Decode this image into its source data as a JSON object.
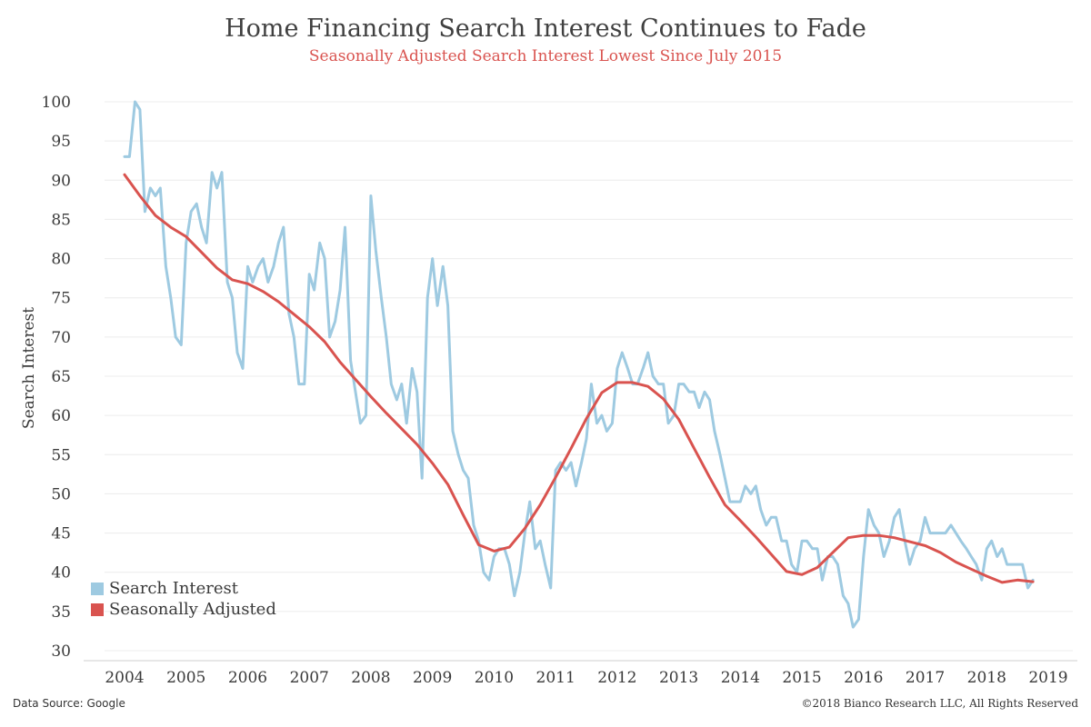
{
  "header": {
    "title": "Home Financing Search Interest Continues to Fade",
    "subtitle": "Seasonally Adjusted Search Interest Lowest Since July 2015"
  },
  "colors": {
    "search_interest": "#9ecae1",
    "seasonally_adjusted": "#d9534f",
    "subtitle": "#d9534f",
    "grid": "#ececec"
  },
  "footer": {
    "source": "Data Source: Google",
    "copyright": "©2018 Bianco Research LLC, All Rights Reserved"
  },
  "chart_data": {
    "type": "line",
    "title": "Home Financing Search Interest Continues to Fade",
    "subtitle": "Seasonally Adjusted Search Interest Lowest Since July 2015",
    "xlabel": "",
    "ylabel": "Search Interest",
    "xlim": [
      2003.3,
      2019.35
    ],
    "ylim": [
      30,
      100
    ],
    "yticks": [
      30,
      35,
      40,
      45,
      50,
      55,
      60,
      65,
      70,
      75,
      80,
      85,
      90,
      95,
      100
    ],
    "xticks": [
      2004,
      2005,
      2006,
      2007,
      2008,
      2009,
      2010,
      2011,
      2012,
      2013,
      2014,
      2015,
      2016,
      2017,
      2018,
      2019
    ],
    "grid": true,
    "legend_position": "bottom-left",
    "series": [
      {
        "name": "Search Interest",
        "color": "#9ecae1",
        "x": [
          2004.0,
          2004.08,
          2004.17,
          2004.25,
          2004.33,
          2004.42,
          2004.5,
          2004.58,
          2004.67,
          2004.75,
          2004.83,
          2004.92,
          2005.0,
          2005.08,
          2005.17,
          2005.25,
          2005.33,
          2005.42,
          2005.5,
          2005.58,
          2005.67,
          2005.75,
          2005.83,
          2005.92,
          2006.0,
          2006.08,
          2006.17,
          2006.25,
          2006.33,
          2006.42,
          2006.5,
          2006.58,
          2006.67,
          2006.75,
          2006.83,
          2006.92,
          2007.0,
          2007.08,
          2007.17,
          2007.25,
          2007.33,
          2007.42,
          2007.5,
          2007.58,
          2007.67,
          2007.75,
          2007.83,
          2007.92,
          2008.0,
          2008.08,
          2008.17,
          2008.25,
          2008.33,
          2008.42,
          2008.5,
          2008.58,
          2008.67,
          2008.75,
          2008.83,
          2008.92,
          2009.0,
          2009.08,
          2009.17,
          2009.25,
          2009.33,
          2009.42,
          2009.5,
          2009.58,
          2009.67,
          2009.75,
          2009.83,
          2009.92,
          2010.0,
          2010.08,
          2010.17,
          2010.25,
          2010.33,
          2010.42,
          2010.5,
          2010.58,
          2010.67,
          2010.75,
          2010.83,
          2010.92,
          2011.0,
          2011.08,
          2011.17,
          2011.25,
          2011.33,
          2011.42,
          2011.5,
          2011.58,
          2011.67,
          2011.75,
          2011.83,
          2011.92,
          2012.0,
          2012.08,
          2012.17,
          2012.25,
          2012.33,
          2012.42,
          2012.5,
          2012.58,
          2012.67,
          2012.75,
          2012.83,
          2012.92,
          2013.0,
          2013.08,
          2013.17,
          2013.25,
          2013.33,
          2013.42,
          2013.5,
          2013.58,
          2013.67,
          2013.75,
          2013.83,
          2013.92,
          2014.0,
          2014.08,
          2014.17,
          2014.25,
          2014.33,
          2014.42,
          2014.5,
          2014.58,
          2014.67,
          2014.75,
          2014.83,
          2014.92,
          2015.0,
          2015.08,
          2015.17,
          2015.25,
          2015.33,
          2015.42,
          2015.5,
          2015.58,
          2015.67,
          2015.75,
          2015.83,
          2015.92,
          2016.0,
          2016.08,
          2016.17,
          2016.25,
          2016.33,
          2016.42,
          2016.5,
          2016.58,
          2016.67,
          2016.75,
          2016.83,
          2016.92,
          2017.0,
          2017.08,
          2017.17,
          2017.25,
          2017.33,
          2017.42,
          2017.5,
          2017.58,
          2017.67,
          2017.75,
          2017.83,
          2017.92,
          2018.0,
          2018.08,
          2018.17,
          2018.25,
          2018.33,
          2018.42,
          2018.5,
          2018.58,
          2018.67,
          2018.75
        ],
        "y": [
          93,
          93,
          100,
          99,
          86,
          89,
          88,
          89,
          79,
          75,
          70,
          69,
          82,
          86,
          87,
          84,
          82,
          91,
          89,
          91,
          77,
          75,
          68,
          66,
          79,
          77,
          79,
          80,
          77,
          79,
          82,
          84,
          73,
          70,
          64,
          64,
          78,
          76,
          82,
          80,
          70,
          72,
          76,
          84,
          67,
          63,
          59,
          60,
          88,
          81,
          75,
          70,
          64,
          62,
          64,
          59,
          66,
          63,
          52,
          75,
          80,
          74,
          79,
          74,
          58,
          55,
          53,
          52,
          46,
          44,
          40,
          39,
          42,
          43,
          43,
          41,
          37,
          40,
          45,
          49,
          43,
          44,
          41,
          38,
          53,
          54,
          53,
          54,
          51,
          54,
          57,
          64,
          59,
          60,
          58,
          59,
          66,
          68,
          66,
          64,
          64,
          66,
          68,
          65,
          64,
          64,
          59,
          60,
          64,
          64,
          63,
          63,
          61,
          63,
          62,
          58,
          55,
          52,
          49,
          49,
          49,
          51,
          50,
          51,
          48,
          46,
          47,
          47,
          44,
          44,
          41,
          40,
          44,
          44,
          43,
          43,
          39,
          42,
          42,
          41,
          37,
          36,
          33,
          34,
          42,
          48,
          46,
          45,
          42,
          44,
          47,
          48,
          44,
          41,
          43,
          44,
          47,
          45,
          45,
          45,
          45,
          46,
          45,
          44,
          43,
          42,
          41,
          39,
          43,
          44,
          42,
          43,
          41,
          41,
          41,
          41,
          38,
          39
        ]
      },
      {
        "name": "Seasonally Adjusted",
        "color": "#d9534f",
        "x": [
          2004.0,
          2004.25,
          2004.5,
          2004.75,
          2005.0,
          2005.25,
          2005.5,
          2005.75,
          2006.0,
          2006.25,
          2006.5,
          2006.75,
          2007.0,
          2007.25,
          2007.5,
          2007.75,
          2008.0,
          2008.25,
          2008.5,
          2008.75,
          2009.0,
          2009.25,
          2009.5,
          2009.75,
          2010.0,
          2010.25,
          2010.5,
          2010.75,
          2011.0,
          2011.25,
          2011.5,
          2011.75,
          2012.0,
          2012.25,
          2012.5,
          2012.75,
          2013.0,
          2013.25,
          2013.5,
          2013.75,
          2014.0,
          2014.25,
          2014.5,
          2014.75,
          2015.0,
          2015.25,
          2015.5,
          2015.75,
          2016.0,
          2016.25,
          2016.5,
          2016.75,
          2017.0,
          2017.25,
          2017.5,
          2017.75,
          2018.0,
          2018.25,
          2018.5,
          2018.75
        ],
        "y": [
          90.7,
          88.0,
          85.5,
          84.0,
          82.8,
          80.8,
          78.8,
          77.3,
          76.8,
          75.8,
          74.5,
          72.9,
          71.3,
          69.4,
          66.8,
          64.6,
          62.4,
          60.3,
          58.3,
          56.3,
          53.9,
          51.2,
          47.3,
          43.5,
          42.7,
          43.2,
          45.6,
          48.6,
          52.1,
          55.8,
          59.6,
          62.9,
          64.2,
          64.2,
          63.7,
          62.1,
          59.5,
          55.8,
          52.1,
          48.6,
          46.6,
          44.5,
          42.3,
          40.1,
          39.7,
          40.6,
          42.5,
          44.4,
          44.7,
          44.7,
          44.4,
          43.9,
          43.4,
          42.5,
          41.3,
          40.4,
          39.5,
          38.7,
          39.0,
          38.8
        ]
      }
    ]
  }
}
